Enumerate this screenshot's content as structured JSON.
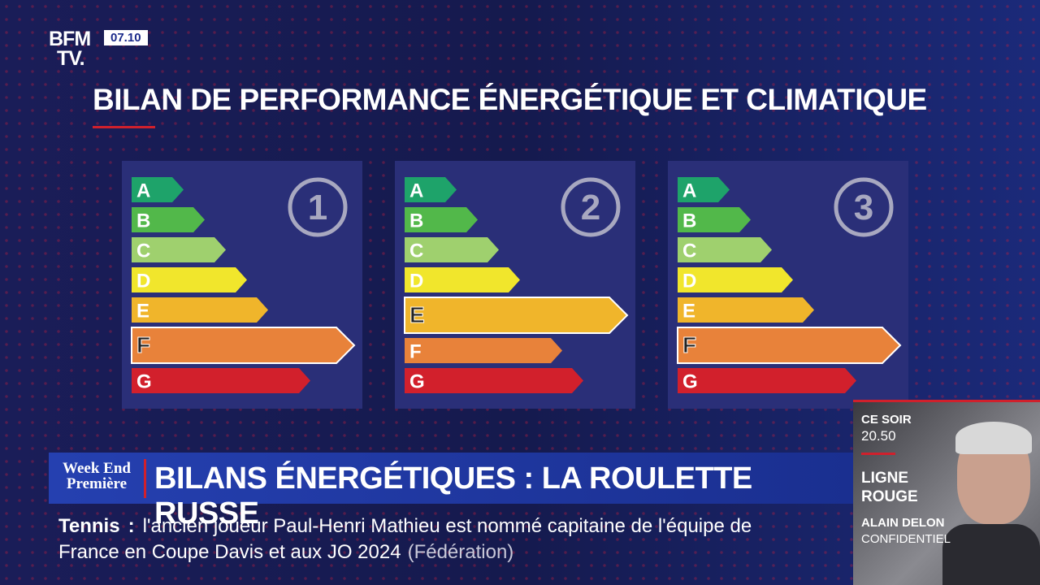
{
  "channel": {
    "logo_top": "BFM",
    "logo_bottom": "TV.",
    "time": "07.10"
  },
  "title": "BILAN DE PERFORMANCE ÉNERGÉTIQUE ET CLIMATIQUE",
  "energy_labels": {
    "classes": [
      "A",
      "B",
      "C",
      "D",
      "E",
      "F",
      "G"
    ],
    "colors": [
      "#1ea36a",
      "#52b84a",
      "#9fd06e",
      "#f1e62c",
      "#f0b52b",
      "#e8823a",
      "#d2202c"
    ],
    "panels": [
      {
        "number": "1",
        "highlight": "F"
      },
      {
        "number": "2",
        "highlight": "E"
      },
      {
        "number": "3",
        "highlight": "F"
      }
    ]
  },
  "banner": {
    "show_top": "Week End",
    "show_bottom": "Première",
    "headline": "BILANS ÉNERGÉTIQUES : LA ROULETTE RUSSE"
  },
  "ticker": {
    "topic": "Tennis",
    "separator": ":",
    "text": "l'ancien joueur Paul-Henri Mathieu est nommé capitaine de l'équipe de France en Coupe Davis et aux JO 2024",
    "source": "(Fédération)"
  },
  "promo": {
    "label": "CE SOIR",
    "time": "20.50",
    "program": "LIGNE ROUGE",
    "subject": "ALAIN DELON",
    "subtitle": "CONFIDENTIEL"
  }
}
